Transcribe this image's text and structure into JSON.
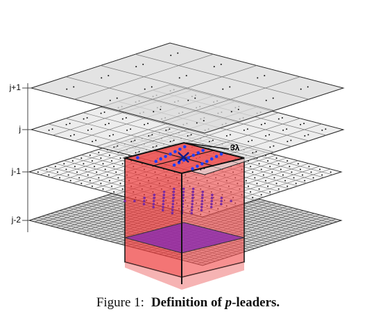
{
  "axis_labels": [
    "j+1",
    "j",
    "j-1",
    "j-2"
  ],
  "annotation": "3λ",
  "caption": {
    "label": "Figure 1:",
    "title": [
      "Definition of",
      "p",
      "-leaders."
    ]
  }
}
